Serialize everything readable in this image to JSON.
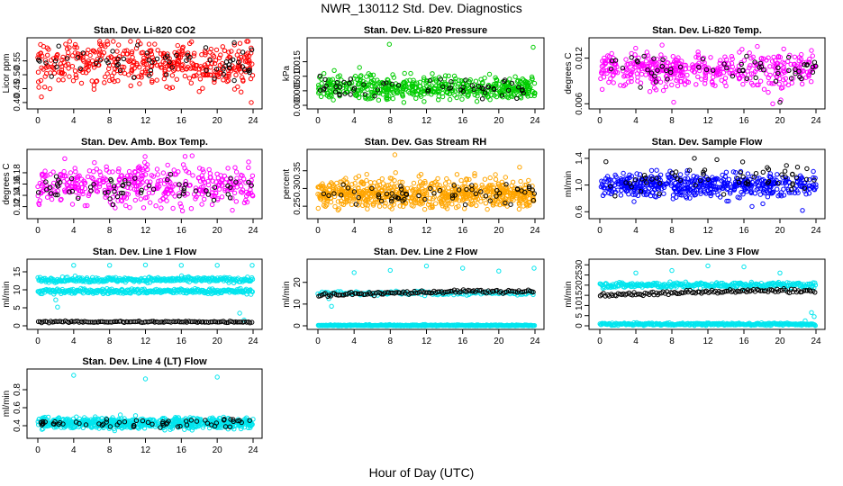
{
  "figure": {
    "title": "NWR_130112  Std. Dev. Diagnostics",
    "xlabel": "Hour of Day (UTC)"
  },
  "chart_data": [
    {
      "type": "scatter",
      "title": "Stan. Dev. Li-820 CO2",
      "ylabel": "Licor ppm",
      "xlim": [
        0,
        24
      ],
      "ylim": [
        0.39,
        0.62
      ],
      "xticks": [
        "0",
        "4",
        "8",
        "12",
        "16",
        "20",
        "24"
      ],
      "yticks": [
        "0.40",
        "0.45",
        "0.50",
        "0.55"
      ],
      "ytick_values": [
        0.4,
        0.45,
        0.5,
        0.55
      ],
      "series": [
        {
          "color": "#ff0000",
          "center": 0.54,
          "spread": 0.04,
          "count": 420,
          "outliers": [
            [
              3.1,
              0.61
            ],
            [
              7.8,
              0.61
            ],
            [
              12.4,
              0.61
            ],
            [
              23.8,
              0.4
            ],
            [
              0.4,
              0.42
            ],
            [
              15.6,
              0.605
            ]
          ]
        },
        {
          "color": "#000000",
          "center": 0.54,
          "spread": 0.03,
          "count": 60,
          "outliers": [
            [
              21.9,
              0.615
            ]
          ]
        }
      ]
    },
    {
      "type": "scatter",
      "title": "Stan. Dev. Li-820 Pressure",
      "ylabel": "kPa",
      "xlim": [
        0,
        24
      ],
      "ylim": [
        0,
        0.022
      ],
      "xticks": [
        "0",
        "4",
        "8",
        "12",
        "16",
        "20",
        "24"
      ],
      "yticks": [
        "0.000",
        "0.005",
        "0.010",
        "0.015"
      ],
      "ytick_values": [
        0.0,
        0.005,
        0.01,
        0.015
      ],
      "series": [
        {
          "color": "#00cc00",
          "center": 0.006,
          "spread": 0.002,
          "count": 520,
          "outliers": [
            [
              7.9,
              0.021
            ],
            [
              23.8,
              0.02
            ],
            [
              1.8,
              0.012
            ],
            [
              4.6,
              0.013
            ],
            [
              9.5,
              0.001
            ]
          ]
        },
        {
          "color": "#000000",
          "center": 0.006,
          "spread": 0.0018,
          "count": 60,
          "outliers": []
        }
      ]
    },
    {
      "type": "scatter",
      "title": "Stan. Dev. Li-820 Temp.",
      "ylabel": "degrees C",
      "xlim": [
        0,
        24
      ],
      "ylim": [
        0.0058,
        0.0142
      ],
      "xticks": [
        "0",
        "4",
        "8",
        "12",
        "16",
        "20",
        "24"
      ],
      "yticks": [
        "0.006",
        "0.012"
      ],
      "ytick_values": [
        0.006,
        0.012
      ],
      "series": [
        {
          "color": "#ff00ff",
          "center": 0.0105,
          "spread": 0.0011,
          "count": 440,
          "outliers": [
            [
              8.2,
              0.0062
            ],
            [
              18.7,
              0.0075
            ],
            [
              19.2,
              0.006
            ],
            [
              23.5,
              0.013
            ],
            [
              20.1,
              0.0065
            ]
          ]
        },
        {
          "color": "#000000",
          "center": 0.0105,
          "spread": 0.0009,
          "count": 60,
          "outliers": [
            [
              20.0,
              0.0062
            ]
          ]
        }
      ]
    },
    {
      "type": "scatter",
      "title": "Stan. Dev. Amb. Box Temp.",
      "ylabel": "degrees C",
      "xlim": [
        0,
        24
      ],
      "ylim": [
        0.105,
        0.215
      ],
      "xticks": [
        "0",
        "4",
        "8",
        "12",
        "16",
        "20",
        "24"
      ],
      "yticks": [
        "0.12",
        "0.14",
        "0.16",
        "0.18"
      ],
      "ytick_values": [
        0.12,
        0.14,
        0.16,
        0.18
      ],
      "series": [
        {
          "color": "#ff00ff",
          "center": 0.158,
          "spread": 0.018,
          "count": 420,
          "outliers": [
            [
              3.0,
              0.205
            ],
            [
              17.2,
              0.21
            ],
            [
              11.8,
              0.118
            ],
            [
              16.0,
              0.12
            ]
          ]
        },
        {
          "color": "#000000",
          "center": 0.155,
          "spread": 0.012,
          "count": 60,
          "outliers": []
        }
      ]
    },
    {
      "type": "scatter",
      "title": "Stan. Dev. Gas Stream RH",
      "ylabel": "percent",
      "xlim": [
        0,
        24
      ],
      "ylim": [
        0.225,
        0.4
      ],
      "xticks": [
        "0",
        "4",
        "8",
        "12",
        "16",
        "20",
        "24"
      ],
      "yticks": [
        "0.25",
        "0.30",
        "0.35"
      ],
      "ytick_values": [
        0.25,
        0.3,
        0.35
      ],
      "series": [
        {
          "color": "#ffa500",
          "center": 0.285,
          "spread": 0.02,
          "count": 700,
          "outliers": [
            [
              8.5,
              0.395
            ],
            [
              22.3,
              0.36
            ],
            [
              11.4,
              0.34
            ],
            [
              5.4,
              0.34
            ]
          ]
        },
        {
          "color": "#000000",
          "center": 0.285,
          "spread": 0.013,
          "count": 60,
          "outliers": []
        }
      ]
    },
    {
      "type": "scatter",
      "title": "Stan. Dev. Sample Flow",
      "ylabel": "ml/min",
      "xlim": [
        0,
        24
      ],
      "ylim": [
        0.55,
        1.48
      ],
      "xticks": [
        "0",
        "4",
        "8",
        "12",
        "16",
        "20",
        "24"
      ],
      "yticks": [
        "0.6",
        "1.0",
        "1.4"
      ],
      "ytick_values": [
        0.6,
        1.0,
        1.4
      ],
      "series": [
        {
          "color": "#0000ff",
          "center": 1.0,
          "spread": 0.09,
          "count": 520,
          "outliers": [
            [
              16.9,
              0.68
            ],
            [
              18.1,
              0.72
            ],
            [
              14.1,
              0.76
            ],
            [
              22.5,
              0.62
            ]
          ]
        },
        {
          "color": "#000000",
          "center": 1.1,
          "spread": 0.12,
          "count": 60,
          "outliers": [
            [
              10.5,
              1.4
            ],
            [
              13.0,
              1.38
            ]
          ]
        }
      ]
    },
    {
      "type": "scatter",
      "title": "Stan. Dev. Line 1 Flow",
      "ylabel": "ml/min",
      "xlim": [
        0,
        24
      ],
      "ylim": [
        0,
        17.5
      ],
      "xticks": [
        "0",
        "4",
        "8",
        "12",
        "16",
        "20",
        "24"
      ],
      "yticks": [
        "0",
        "5",
        "10",
        "15"
      ],
      "ytick_values": [
        0,
        5,
        10,
        15
      ],
      "series": [
        {
          "color": "#00e5ee",
          "bands": [
            {
              "center": 12.8,
              "spread": 0.35,
              "count": 300
            },
            {
              "center": 9.6,
              "spread": 0.35,
              "count": 300
            }
          ],
          "outliers": [
            [
              4.0,
              16.8
            ],
            [
              8.0,
              16.8
            ],
            [
              12.0,
              16.9
            ],
            [
              16.0,
              16.8
            ],
            [
              20.0,
              16.8
            ],
            [
              23.9,
              16.8
            ],
            [
              2.0,
              7.2
            ],
            [
              2.2,
              5.2
            ],
            [
              22.5,
              3.5
            ],
            [
              23.0,
              1.6
            ],
            [
              1.8,
              8.8
            ]
          ]
        },
        {
          "color": "#000000",
          "bands": [
            {
              "center": 1.1,
              "spread": 0.12,
              "count": 120
            }
          ],
          "outliers": []
        }
      ]
    },
    {
      "type": "scatter",
      "title": "Stan. Dev. Line 2 Flow",
      "ylabel": "ml/min",
      "xlim": [
        0,
        24
      ],
      "ylim": [
        0,
        29
      ],
      "xticks": [
        "0",
        "4",
        "8",
        "12",
        "16",
        "20",
        "24"
      ],
      "yticks": [
        "0",
        "10",
        "20"
      ],
      "ytick_values": [
        0,
        10,
        20
      ],
      "series": [
        {
          "color": "#00e5ee",
          "bands": [
            {
              "center": 0.2,
              "spread": 0.15,
              "count": 300
            },
            {
              "center": 15.0,
              "spread": 0.5,
              "count": 120
            }
          ],
          "outliers": [
            [
              4.0,
              24.5
            ],
            [
              8.0,
              25.5
            ],
            [
              12.0,
              27.5
            ],
            [
              16.0,
              26.5
            ],
            [
              20.0,
              25.2
            ],
            [
              23.9,
              26.5
            ],
            [
              1.5,
              9.0
            ],
            [
              1.2,
              12.5
            ]
          ]
        },
        {
          "color": "#000000",
          "trend": [
            14.2,
            15.8
          ],
          "spread": 0.4,
          "count": 120,
          "outliers": []
        }
      ]
    },
    {
      "type": "scatter",
      "title": "Stan. Dev. Line 3 Flow",
      "ylabel": "ml/min",
      "xlim": [
        0,
        24
      ],
      "ylim": [
        0,
        31
      ],
      "xticks": [
        "0",
        "4",
        "8",
        "12",
        "16",
        "20",
        "24"
      ],
      "yticks": [
        "0",
        "5",
        "10",
        "15",
        "20",
        "25",
        "30"
      ],
      "ytick_values": [
        0,
        5,
        10,
        15,
        20,
        25,
        30
      ],
      "series": [
        {
          "color": "#00e5ee",
          "bands": [
            {
              "center": 0.8,
              "spread": 0.3,
              "count": 300
            },
            {
              "center": 20.0,
              "spread": 0.7,
              "count": 300
            }
          ],
          "outliers": [
            [
              4.0,
              26.0
            ],
            [
              8.0,
              27.2
            ],
            [
              12.0,
              29.5
            ],
            [
              16.0,
              29.0
            ],
            [
              20.0,
              26.0
            ],
            [
              23.8,
              4.5
            ],
            [
              23.5,
              6.5
            ],
            [
              22.8,
              2.5
            ]
          ]
        },
        {
          "color": "#000000",
          "trend": [
            15.0,
            17.3
          ],
          "spread": 0.5,
          "count": 120,
          "outliers": []
        }
      ]
    },
    {
      "type": "scatter",
      "title": "Stan. Dev. Line 4 (LT) Flow",
      "ylabel": "ml/min",
      "xlim": [
        0,
        24
      ],
      "ylim": [
        0.3,
        0.99
      ],
      "xticks": [
        "0",
        "4",
        "8",
        "12",
        "16",
        "20",
        "24"
      ],
      "yticks": [
        "0.4",
        "0.6",
        "0.8"
      ],
      "ytick_values": [
        0.4,
        0.6,
        0.8
      ],
      "series": [
        {
          "color": "#00e5ee",
          "center": 0.43,
          "spread": 0.03,
          "count": 700,
          "outliers": [
            [
              4.0,
              0.96
            ],
            [
              12.0,
              0.92
            ],
            [
              20.0,
              0.94
            ],
            [
              9.2,
              0.52
            ]
          ]
        },
        {
          "color": "#000000",
          "center": 0.43,
          "spread": 0.025,
          "count": 60,
          "outliers": []
        }
      ]
    }
  ]
}
